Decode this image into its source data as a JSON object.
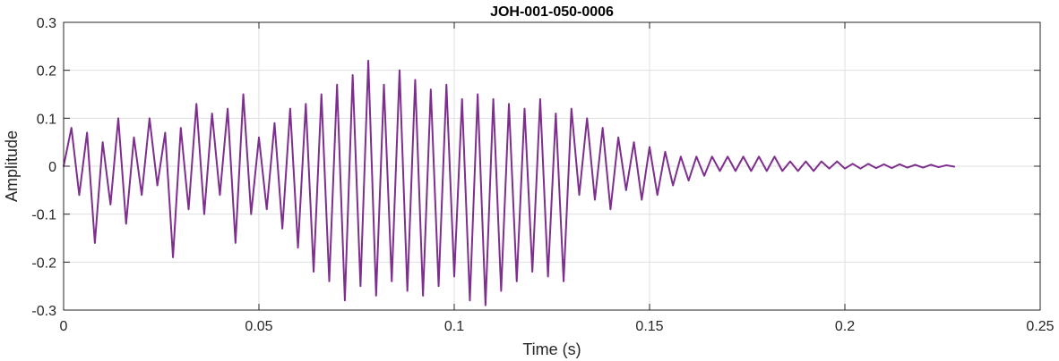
{
  "chart_data": {
    "type": "line",
    "title": "JOH-001-050-0006",
    "xlabel": "Time (s)",
    "ylabel": "Amplitude",
    "xlim": [
      0,
      0.25
    ],
    "ylim": [
      -0.3,
      0.3
    ],
    "x_ticks": [
      0,
      0.05,
      0.1,
      0.15,
      0.2,
      0.25
    ],
    "x_tick_labels": [
      "0",
      "0.05",
      "0.1",
      "0.15",
      "0.2",
      "0.25"
    ],
    "y_ticks": [
      -0.3,
      -0.2,
      -0.1,
      0,
      0.1,
      0.2,
      0.3
    ],
    "y_tick_labels": [
      "-0.3",
      "-0.2",
      "-0.1",
      "0",
      "0.1",
      "0.2",
      "0.3"
    ],
    "grid": true,
    "colors": {
      "line": "#7E2F8E",
      "grid": "#dfdfdf",
      "axis": "#262626"
    },
    "series": [
      {
        "x": [
          0,
          0.002,
          0.004,
          0.006,
          0.008,
          0.01,
          0.012,
          0.014,
          0.016,
          0.018,
          0.02,
          0.022,
          0.024,
          0.026,
          0.028,
          0.03,
          0.032,
          0.034,
          0.036,
          0.038,
          0.04,
          0.042,
          0.044,
          0.046,
          0.048,
          0.05,
          0.052,
          0.054,
          0.056,
          0.058,
          0.06,
          0.062,
          0.064,
          0.066,
          0.068,
          0.07,
          0.072,
          0.074,
          0.076,
          0.078,
          0.08,
          0.082,
          0.084,
          0.086,
          0.088,
          0.09,
          0.092,
          0.094,
          0.096,
          0.098,
          0.1,
          0.102,
          0.104,
          0.106,
          0.108,
          0.11,
          0.112,
          0.114,
          0.116,
          0.118,
          0.12,
          0.122,
          0.124,
          0.126,
          0.128,
          0.13,
          0.132,
          0.134,
          0.136,
          0.138,
          0.14,
          0.142,
          0.144,
          0.146,
          0.148,
          0.15,
          0.152,
          0.154,
          0.156,
          0.158,
          0.16,
          0.162,
          0.164,
          0.166,
          0.168,
          0.17,
          0.172,
          0.174,
          0.176,
          0.178,
          0.18,
          0.182,
          0.184,
          0.186,
          0.188,
          0.19,
          0.192,
          0.194,
          0.196,
          0.198,
          0.2,
          0.202,
          0.204,
          0.206,
          0.208,
          0.21,
          0.212,
          0.214,
          0.216,
          0.218,
          0.22,
          0.222,
          0.224,
          0.226,
          0.228
        ],
        "y": [
          0.0,
          0.08,
          -0.06,
          0.07,
          -0.16,
          0.05,
          -0.08,
          0.1,
          -0.12,
          0.06,
          -0.06,
          0.1,
          -0.04,
          0.07,
          -0.19,
          0.08,
          -0.09,
          0.13,
          -0.1,
          0.11,
          -0.06,
          0.12,
          -0.16,
          0.15,
          -0.1,
          0.06,
          -0.09,
          0.09,
          -0.13,
          0.12,
          -0.17,
          0.13,
          -0.22,
          0.15,
          -0.24,
          0.17,
          -0.28,
          0.19,
          -0.25,
          0.22,
          -0.27,
          0.17,
          -0.24,
          0.2,
          -0.26,
          0.18,
          -0.27,
          0.16,
          -0.25,
          0.17,
          -0.23,
          0.14,
          -0.28,
          0.15,
          -0.29,
          0.14,
          -0.26,
          0.13,
          -0.24,
          0.12,
          -0.22,
          0.14,
          -0.23,
          0.11,
          -0.24,
          0.12,
          -0.06,
          0.1,
          -0.07,
          0.08,
          -0.09,
          0.06,
          -0.05,
          0.05,
          -0.07,
          0.04,
          -0.06,
          0.03,
          -0.04,
          0.02,
          -0.03,
          0.02,
          -0.02,
          0.02,
          -0.01,
          0.02,
          -0.01,
          0.02,
          -0.01,
          0.02,
          -0.01,
          0.02,
          -0.01,
          0.01,
          -0.01,
          0.01,
          -0.01,
          0.01,
          -0.005,
          0.01,
          -0.005,
          0.005,
          -0.005,
          0.005,
          -0.004,
          0.004,
          -0.004,
          0.004,
          -0.003,
          0.003,
          -0.003,
          0.003,
          -0.002,
          0.002,
          -0.001
        ]
      }
    ]
  }
}
